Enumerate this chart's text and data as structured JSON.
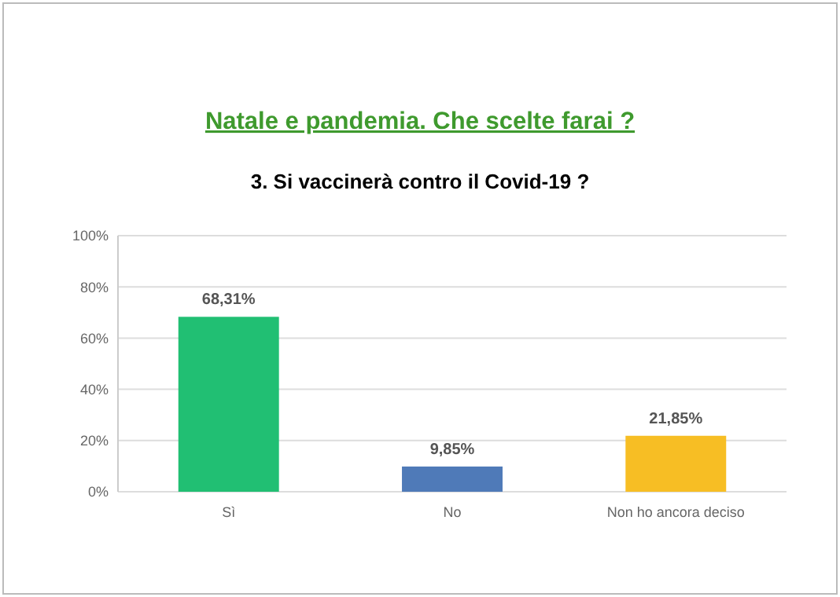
{
  "chart_data": {
    "type": "bar",
    "title": "Natale e pandemia. Che scelte farai ?",
    "subtitle": "3. Si vaccinerà contro il Covid-19 ?",
    "categories": [
      "Sì",
      "No",
      "Non ho ancora deciso"
    ],
    "values": [
      68.31,
      9.85,
      21.85
    ],
    "colors": [
      "#21bf73",
      "#4f7ab8",
      "#f7be24"
    ],
    "value_labels": [
      "68,31%",
      "9,85%",
      "21,85%"
    ],
    "ylim": [
      0,
      100
    ],
    "yticks": [
      {
        "value": 0,
        "label": "0%"
      },
      {
        "value": 20,
        "label": "20%"
      },
      {
        "value": 40,
        "label": "40%"
      },
      {
        "value": 60,
        "label": "60%"
      },
      {
        "value": 80,
        "label": "80%"
      },
      {
        "value": 100,
        "label": "100%"
      }
    ],
    "grid": "y"
  }
}
